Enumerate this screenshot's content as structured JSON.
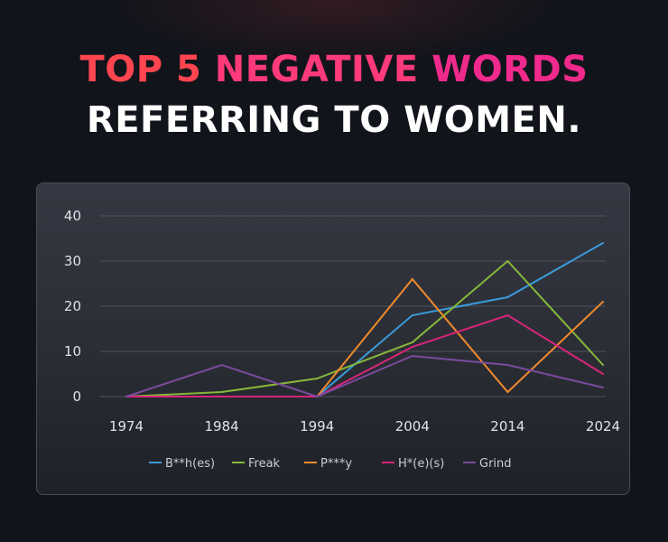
{
  "title": {
    "line1_words": [
      "TOP 5",
      "NEGATIVE",
      "WORDS"
    ],
    "line2": "REFERRING TO WOMEN."
  },
  "colors": {
    "title_word_1": "#ff4550",
    "title_word_2": "#ff3a7a",
    "title_word_3": "#f02a8c"
  },
  "chart_data": {
    "type": "line",
    "x": [
      "1974",
      "1984",
      "1994",
      "2004",
      "2014",
      "2024"
    ],
    "y_ticks": [
      "0",
      "10",
      "20",
      "30",
      "40"
    ],
    "ylim": [
      0,
      40
    ],
    "grid": true,
    "legend_position": "bottom",
    "series": [
      {
        "name": "B**h(es)",
        "color": "#3a9bd8",
        "values": [
          0,
          0,
          0,
          18,
          22,
          34
        ]
      },
      {
        "name": "Freak",
        "color": "#86b83a",
        "values": [
          0,
          1,
          4,
          12,
          30,
          7
        ]
      },
      {
        "name": "P***y",
        "color": "#ef8a2c",
        "values": [
          0,
          0,
          0,
          26,
          1,
          21
        ]
      },
      {
        "name": "H*(e)(s)",
        "color": "#d8257a",
        "values": [
          0,
          0,
          0,
          11,
          18,
          5
        ]
      },
      {
        "name": "Grind",
        "color": "#7a4a9e",
        "values": [
          0,
          7,
          0,
          9,
          7,
          2
        ]
      }
    ]
  }
}
